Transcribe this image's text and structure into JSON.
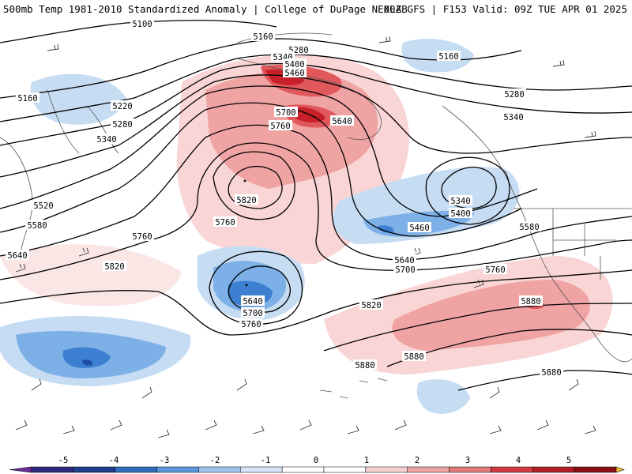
{
  "header": {
    "title_left": "500mb Temp 1981-2010 Standardized Anomaly | College of DuPage NEXLAB",
    "title_right": "00Z GFS | F153 Valid: 09Z TUE APR 01 2025"
  },
  "colors": {
    "contour": "#000000",
    "coast": "#555555",
    "barb": "#333333",
    "neg3": "#3d7fd0",
    "neg2": "#7cb0e6",
    "neg1": "#c6dcf3",
    "neg4": "#1f4fa8",
    "neg5": "#14287a",
    "pos1": "#f9d5d5",
    "pos2": "#f0a3a3",
    "pos3": "#e0585c",
    "pos4": "#c8202a",
    "pos5": "#8e0f16"
  },
  "height_labels": [
    {
      "text": "5100"
    },
    {
      "text": "5160"
    },
    {
      "text": "5280"
    },
    {
      "text": "5340"
    },
    {
      "text": "5400"
    },
    {
      "text": "5460"
    },
    {
      "text": "5160"
    },
    {
      "text": "5220"
    },
    {
      "text": "5280"
    },
    {
      "text": "5340"
    },
    {
      "text": "5700"
    },
    {
      "text": "5640"
    },
    {
      "text": "5760"
    },
    {
      "text": "5820"
    },
    {
      "text": "5520"
    },
    {
      "text": "5580"
    },
    {
      "text": "5640"
    },
    {
      "text": "5760"
    },
    {
      "text": "5760"
    },
    {
      "text": "5820"
    },
    {
      "text": "5160"
    },
    {
      "text": "5280"
    },
    {
      "text": "5340"
    },
    {
      "text": "5340"
    },
    {
      "text": "5400"
    },
    {
      "text": "5460"
    },
    {
      "text": "5580"
    },
    {
      "text": "5640"
    },
    {
      "text": "5700"
    },
    {
      "text": "5760"
    },
    {
      "text": "5640"
    },
    {
      "text": "5700"
    },
    {
      "text": "5760"
    },
    {
      "text": "5820"
    },
    {
      "text": "5880"
    },
    {
      "text": "5880"
    },
    {
      "text": "5880"
    },
    {
      "text": "5880"
    }
  ],
  "colorbar": {
    "ticks": [
      "-5",
      "-4",
      "-3",
      "-2",
      "-1",
      "0",
      "1",
      "2",
      "3",
      "4",
      "5"
    ],
    "segment_colors": [
      "#2c2a7a",
      "#1f3f8a",
      "#2f6db8",
      "#5b97d8",
      "#9ec3ec",
      "#d5e5f7",
      "#ffffff",
      "#ffffff",
      "#f6cfcf",
      "#eea3a3",
      "#e07a7a",
      "#d13a3f",
      "#b01e26",
      "#8a0f16"
    ],
    "left_arrow_color": "#6a2c9a",
    "right_arrow_color": "#f2b632"
  }
}
